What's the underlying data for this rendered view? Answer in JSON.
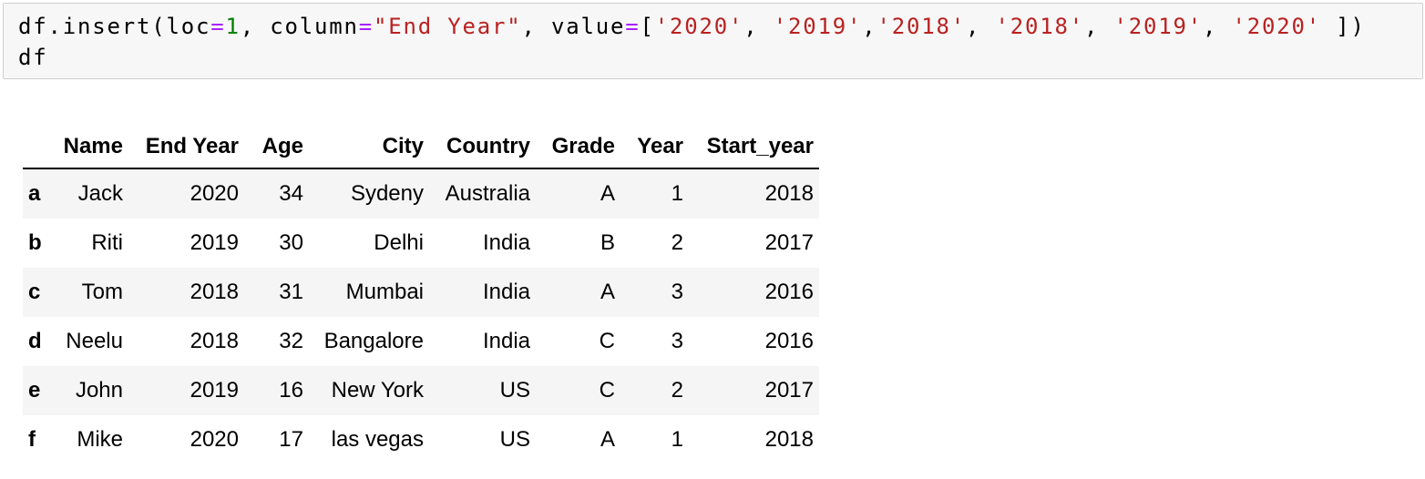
{
  "code_cell": {
    "syntax_colors": {
      "plain": "#000000",
      "operator": "#AA22FF",
      "number": "#008000",
      "string": "#BA2121",
      "background": "#f7f7f7",
      "border": "#cfcfcf"
    },
    "lines": [
      {
        "tokens": [
          {
            "text": "df.insert(loc",
            "type": "plain"
          },
          {
            "text": "=",
            "type": "operator"
          },
          {
            "text": "1",
            "type": "number"
          },
          {
            "text": ", column",
            "type": "plain"
          },
          {
            "text": "=",
            "type": "operator"
          },
          {
            "text": "\"End Year\"",
            "type": "string"
          },
          {
            "text": ", value",
            "type": "plain"
          },
          {
            "text": "=",
            "type": "operator"
          },
          {
            "text": "[",
            "type": "plain"
          },
          {
            "text": "'2020'",
            "type": "string"
          },
          {
            "text": ", ",
            "type": "plain"
          },
          {
            "text": "'2019'",
            "type": "string"
          },
          {
            "text": ",",
            "type": "plain"
          },
          {
            "text": "'2018'",
            "type": "string"
          },
          {
            "text": ", ",
            "type": "plain"
          },
          {
            "text": "'2018'",
            "type": "string"
          },
          {
            "text": ", ",
            "type": "plain"
          },
          {
            "text": "'2019'",
            "type": "string"
          },
          {
            "text": ", ",
            "type": "plain"
          },
          {
            "text": "'2020'",
            "type": "string"
          },
          {
            "text": " ])",
            "type": "plain"
          }
        ]
      },
      {
        "tokens": [
          {
            "text": "df",
            "type": "plain"
          }
        ]
      }
    ]
  },
  "table": {
    "index_header": "",
    "columns": [
      "Name",
      "End Year",
      "Age",
      "City",
      "Country",
      "Grade",
      "Year",
      "Start_year"
    ],
    "rows": [
      {
        "index": "a",
        "cells": [
          "Jack",
          "2020",
          "34",
          "Sydeny",
          "Australia",
          "A",
          "1",
          "2018"
        ],
        "striped": true
      },
      {
        "index": "b",
        "cells": [
          "Riti",
          "2019",
          "30",
          "Delhi",
          "India",
          "B",
          "2",
          "2017"
        ],
        "striped": false
      },
      {
        "index": "c",
        "cells": [
          "Tom",
          "2018",
          "31",
          "Mumbai",
          "India",
          "A",
          "3",
          "2016"
        ],
        "striped": true
      },
      {
        "index": "d",
        "cells": [
          "Neelu",
          "2018",
          "32",
          "Bangalore",
          "India",
          "C",
          "3",
          "2016"
        ],
        "striped": false
      },
      {
        "index": "e",
        "cells": [
          "John",
          "2019",
          "16",
          "New York",
          "US",
          "C",
          "2",
          "2017"
        ],
        "striped": true
      },
      {
        "index": "f",
        "cells": [
          "Mike",
          "2020",
          "17",
          "las vegas",
          "US",
          "A",
          "1",
          "2018"
        ],
        "striped": false
      }
    ],
    "stripe_color": "#f5f5f5",
    "header_border_color": "#000000"
  }
}
